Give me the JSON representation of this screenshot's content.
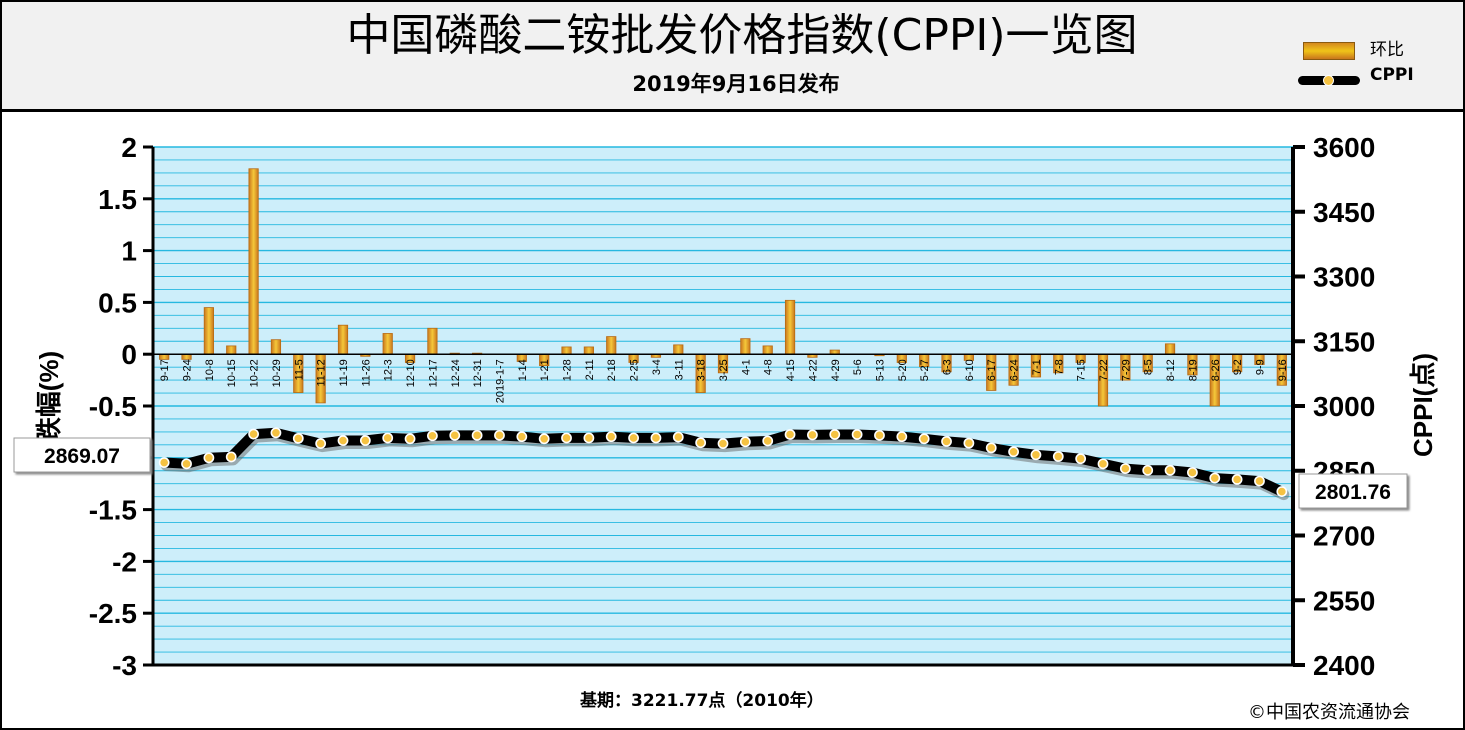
{
  "header": {
    "title": "中国磷酸二铵批发价格指数(CPPI)一览图",
    "subtitle": "2019年9月16日发布"
  },
  "legend": {
    "bar_label": "环比",
    "line_label": "CPPI"
  },
  "axes": {
    "left_label": "涨跌幅(%)",
    "right_label": "CPPI(点)"
  },
  "callouts": {
    "first_value": "2869.07",
    "last_value": "2801.76"
  },
  "footer": {
    "base_period": "基期：3221.77点（2010年）",
    "copyright": "©中国农资流通协会"
  },
  "colors": {
    "plot_bg": "#cdeefa",
    "grid": "#25b8e0",
    "bar": "#e8a020",
    "bar_edge": "#b86a12",
    "line": "#000000",
    "dot": "#f5c242"
  },
  "chart_data": {
    "type": "bar+line",
    "categories": [
      "9-17",
      "9-24",
      "10-8",
      "10-15",
      "10-22",
      "10-29",
      "11-5",
      "11-12",
      "11-19",
      "11-26",
      "12-3",
      "12-10",
      "12-17",
      "12-24",
      "12-31",
      "2019-1-7",
      "1-14",
      "1-21",
      "1-28",
      "2-11",
      "2-18",
      "2-25",
      "3-4",
      "3-11",
      "3-18",
      "3-25",
      "4-1",
      "4-8",
      "4-15",
      "4-22",
      "4-29",
      "5-6",
      "5-13",
      "5-20",
      "5-27",
      "6-3",
      "6-10",
      "6-17",
      "6-24",
      "7-1",
      "7-8",
      "7-15",
      "7-22",
      "7-29",
      "8-5",
      "8-12",
      "8-19",
      "8-26",
      "9-2",
      "9-9",
      "9-16"
    ],
    "series": [
      {
        "name": "环比",
        "axis": "left",
        "type": "bar",
        "values": [
          -0.05,
          -0.05,
          0.45,
          0.08,
          1.79,
          0.14,
          -0.37,
          -0.47,
          0.28,
          -0.02,
          0.2,
          -0.08,
          0.25,
          0.01,
          0.01,
          0.0,
          -0.07,
          -0.11,
          0.07,
          0.07,
          0.17,
          -0.08,
          -0.03,
          0.09,
          -0.37,
          -0.18,
          0.15,
          0.08,
          0.52,
          -0.03,
          0.04,
          0.0,
          -0.01,
          -0.08,
          -0.12,
          -0.17,
          -0.06,
          -0.35,
          -0.3,
          -0.22,
          -0.18,
          -0.08,
          -0.5,
          -0.25,
          -0.17,
          0.1,
          -0.2,
          -0.5,
          -0.17,
          -0.1,
          -0.3
        ]
      },
      {
        "name": "CPPI",
        "axis": "right",
        "type": "line",
        "values": [
          2869.07,
          2866,
          2880,
          2882,
          2935,
          2938,
          2925,
          2913,
          2920,
          2920,
          2926,
          2924,
          2931,
          2932,
          2932,
          2932,
          2929,
          2924,
          2926,
          2926,
          2929,
          2926,
          2926,
          2928,
          2915,
          2913,
          2917,
          2919,
          2934,
          2933,
          2934,
          2934,
          2932,
          2929,
          2924,
          2918,
          2914,
          2903,
          2894,
          2887,
          2883,
          2878,
          2866,
          2855,
          2851,
          2851,
          2846,
          2833,
          2830,
          2826,
          2801.76
        ]
      }
    ],
    "y_left": {
      "min": -3,
      "max": 2,
      "ticks": [
        "2",
        "1.5",
        "1",
        "0.5",
        "0",
        "-0.5",
        "-1",
        "-1.5",
        "-2",
        "-2.5",
        "-3"
      ]
    },
    "y_right": {
      "min": 2400,
      "max": 3600,
      "ticks": [
        "3600",
        "3450",
        "3300",
        "3150",
        "3000",
        "2850",
        "2700",
        "2550",
        "2400"
      ]
    },
    "grid": true,
    "legend_position": "top-right"
  }
}
